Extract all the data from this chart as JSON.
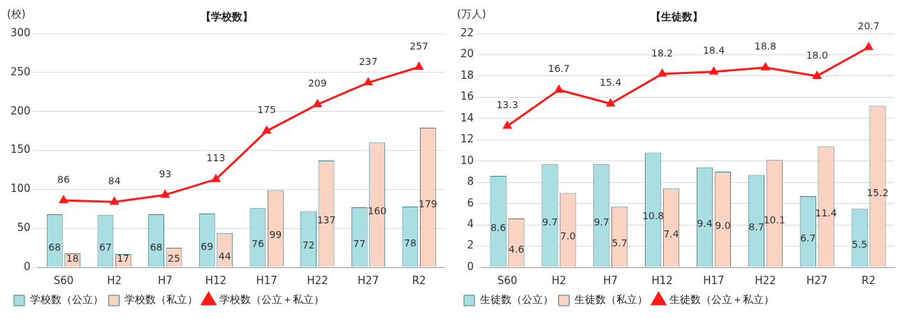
{
  "chart_data": [
    {
      "type": "bar",
      "title": "【学校数】",
      "ylabel": "(校)",
      "categories": [
        "S60",
        "H2",
        "H7",
        "H12",
        "H17",
        "H22",
        "H27",
        "R2"
      ],
      "ylim": [
        0,
        300
      ],
      "yticks": [
        0,
        50,
        100,
        150,
        200,
        250,
        300
      ],
      "grid": "y",
      "legend": "bottom",
      "data_labels": true,
      "series": [
        {
          "name": "学校数（公立）",
          "color": "#a9dfe3",
          "values": [
            68,
            67,
            68,
            69,
            76,
            72,
            77,
            78
          ]
        },
        {
          "name": "学校数（私立）",
          "color": "#fbd3c3",
          "values": [
            18,
            17,
            25,
            44,
            99,
            137,
            160,
            179
          ]
        },
        {
          "name": "学校数（公立＋私立）",
          "type": "line",
          "color": "#ff1a1a",
          "marker": "triangle",
          "values": [
            86,
            84,
            93,
            113,
            175,
            209,
            237,
            257
          ]
        }
      ]
    },
    {
      "type": "bar",
      "title": "【生徒数】",
      "ylabel": "(万人)",
      "categories": [
        "S60",
        "H2",
        "H7",
        "H12",
        "H17",
        "H22",
        "H27",
        "R2"
      ],
      "ylim": [
        0,
        22
      ],
      "yticks": [
        0,
        2,
        4,
        6,
        8,
        10,
        12,
        14,
        16,
        18,
        20,
        22
      ],
      "grid": "y",
      "legend": "bottom",
      "series": [
        {
          "name": "生徒数（公立）",
          "color": "#a9dfe3",
          "values": [
            8.6,
            9.7,
            9.7,
            10.8,
            9.4,
            8.7,
            6.7,
            5.5
          ],
          "value_labels": [
            "8.6",
            "9.7",
            "9.7",
            "10.8",
            "9.4",
            "8.7",
            "6.7",
            "5.5"
          ]
        },
        {
          "name": "生徒数（私立）",
          "color": "#fbd3c3",
          "values": [
            4.6,
            7.0,
            5.7,
            7.4,
            9.0,
            10.1,
            11.4,
            15.2
          ],
          "value_labels": [
            "4.6",
            "7.0",
            "5.7",
            "7.4",
            "9.0",
            "10.1",
            "11.4",
            "15.2"
          ]
        },
        {
          "name": "生徒数（公立＋私立）",
          "type": "line",
          "color": "#ff1a1a",
          "marker": "triangle",
          "values": [
            13.3,
            16.7,
            15.4,
            18.2,
            18.4,
            18.8,
            18.0,
            20.7
          ],
          "value_labels": [
            "13.3",
            "16.7",
            "15.4",
            "18.2",
            "18.4",
            "18.8",
            "18.0",
            "20.7"
          ]
        }
      ]
    }
  ]
}
